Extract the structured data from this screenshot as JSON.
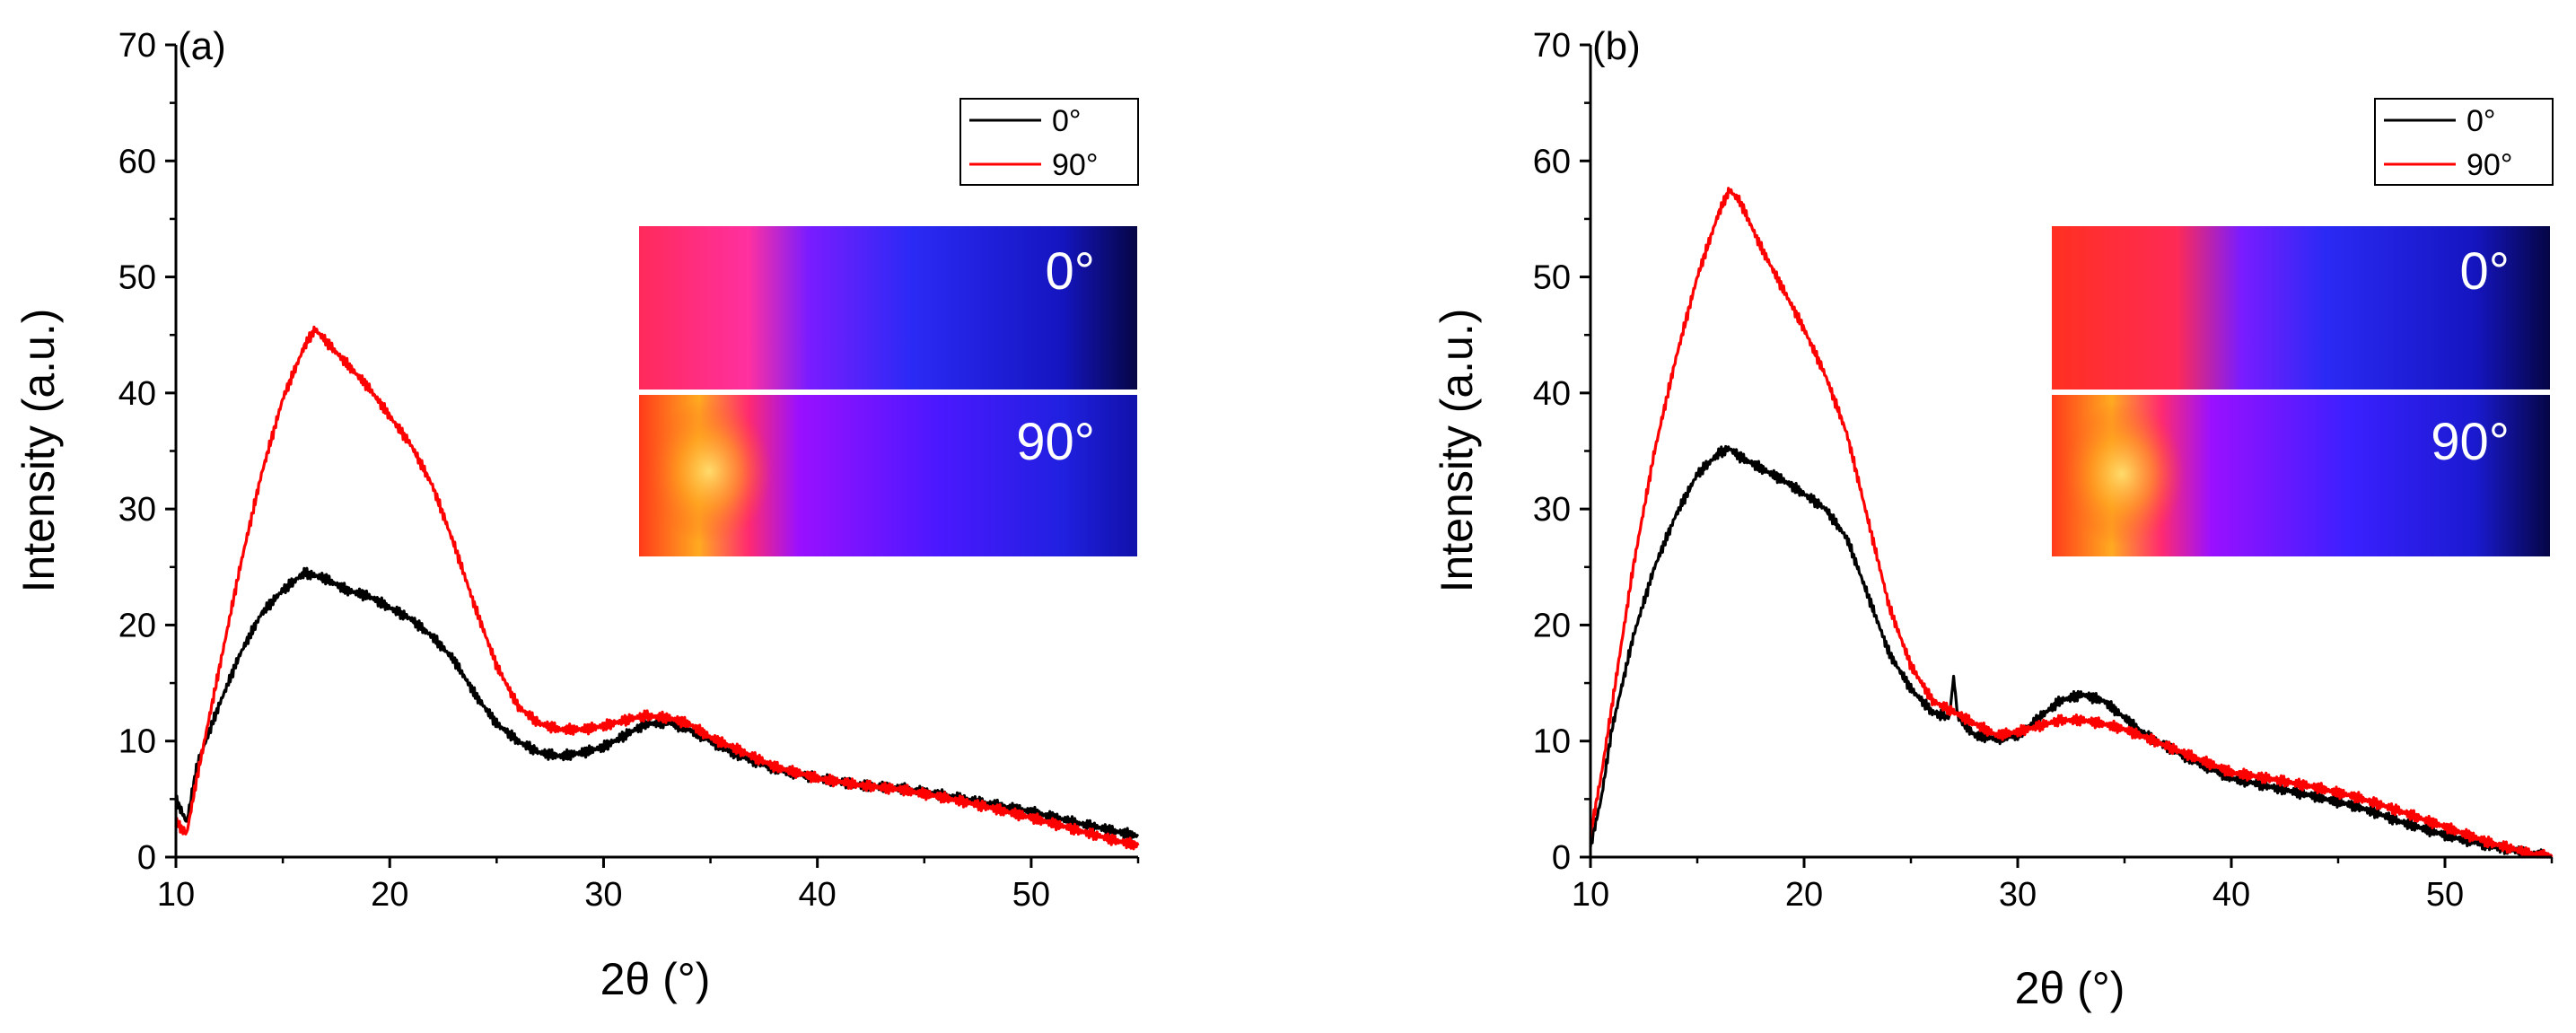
{
  "chart_data": [
    {
      "type": "line",
      "panel_label": "(a)",
      "xlabel": "2θ (°)",
      "ylabel": "Intensity (a.u.)",
      "xlim": [
        10,
        55
      ],
      "ylim": [
        0,
        70
      ],
      "xticks": [
        10,
        20,
        30,
        40,
        50
      ],
      "yticks": [
        0,
        10,
        20,
        30,
        40,
        50,
        60,
        70
      ],
      "legend": {
        "placement": "top-right",
        "entries": [
          "0°",
          "90°"
        ]
      },
      "colors": {
        "0°": "#000000",
        "90°": "#ff0000"
      },
      "series": [
        {
          "name": "0°",
          "x": [
            10,
            10.5,
            11,
            12,
            13,
            14,
            15,
            16,
            17,
            18,
            19,
            20,
            21,
            22,
            23,
            24,
            25,
            26,
            27,
            28,
            29,
            30,
            31,
            32,
            33,
            34,
            35,
            36,
            38,
            40,
            42,
            44,
            46,
            48,
            50,
            52,
            54,
            55
          ],
          "y": [
            5,
            3,
            8,
            13,
            17.5,
            21,
            23,
            24.5,
            24,
            23,
            22.5,
            21.5,
            20.5,
            19,
            17,
            14,
            11.5,
            10,
            9,
            8.7,
            9,
            9.5,
            10.5,
            11.5,
            11.6,
            11,
            10,
            9,
            7.6,
            6.8,
            6.2,
            5.9,
            5.3,
            4.6,
            3.9,
            3.0,
            2.2,
            1.8
          ]
        },
        {
          "name": "90°",
          "x": [
            10,
            10.5,
            11,
            12,
            13,
            14,
            15,
            16,
            16.5,
            17,
            18,
            19,
            20,
            21,
            22,
            23,
            24,
            25,
            26,
            27,
            28,
            29,
            30,
            31,
            32,
            33,
            34,
            35,
            36,
            38,
            40,
            42,
            44,
            46,
            48,
            50,
            52,
            54,
            55
          ],
          "y": [
            3,
            2,
            7,
            16,
            25,
            33,
            39.5,
            44,
            45.5,
            44.5,
            42.5,
            40.5,
            38,
            35.5,
            32,
            27,
            21.5,
            16.5,
            13,
            11.5,
            11,
            11,
            11.3,
            11.8,
            12.2,
            12,
            11.5,
            10.3,
            9.5,
            7.8,
            6.8,
            6.2,
            5.8,
            5.1,
            4.3,
            3.4,
            2.4,
            1.4,
            1.0
          ]
        }
      ],
      "inset": {
        "labels": [
          "0°",
          "90°"
        ]
      }
    },
    {
      "type": "line",
      "panel_label": "(b)",
      "xlabel": "2θ (°)",
      "ylabel": "Intensity (a.u.)",
      "xlim": [
        10,
        55
      ],
      "ylim": [
        0,
        70
      ],
      "xticks": [
        10,
        20,
        30,
        40,
        50
      ],
      "yticks": [
        0,
        10,
        20,
        30,
        40,
        50,
        60,
        70
      ],
      "legend": {
        "placement": "top-right",
        "entries": [
          "0°",
          "90°"
        ]
      },
      "colors": {
        "0°": "#000000",
        "90°": "#ff0000"
      },
      "series": [
        {
          "name": "0°",
          "x": [
            10,
            10.5,
            11,
            12,
            13,
            14,
            15,
            16,
            16.5,
            17,
            18,
            19,
            20,
            21,
            22,
            23,
            24,
            25,
            26,
            26.8,
            27,
            27.2,
            28,
            29,
            30,
            31,
            32,
            33,
            34,
            35,
            36,
            38,
            40,
            42,
            44,
            46,
            48,
            50,
            52,
            54,
            55
          ],
          "y": [
            1,
            5,
            11,
            19,
            25,
            29.5,
            33,
            34.8,
            35.2,
            34.5,
            33.5,
            32.5,
            31.3,
            30,
            27.5,
            22.5,
            17.5,
            14.5,
            12.5,
            12,
            15.5,
            12,
            10.5,
            10.2,
            10.5,
            12,
            13.5,
            14,
            13.5,
            12,
            10.5,
            8.5,
            6.8,
            6.0,
            5.2,
            4.3,
            3.0,
            1.9,
            1.0,
            0.3,
            0
          ]
        },
        {
          "name": "90°",
          "x": [
            10,
            10.5,
            11,
            12,
            13,
            14,
            15,
            16,
            16.5,
            17,
            18,
            19,
            20,
            21,
            22,
            23,
            24,
            25,
            26,
            27,
            28,
            29,
            30,
            31,
            32,
            33,
            34,
            35,
            36,
            38,
            40,
            42,
            44,
            46,
            48,
            50,
            52,
            54,
            55
          ],
          "y": [
            2,
            7,
            13,
            25,
            35,
            43,
            50,
            55.5,
            57.5,
            56.5,
            52.5,
            49,
            45.5,
            41.5,
            36.5,
            29,
            21.5,
            16.5,
            13.5,
            12.5,
            11.5,
            10.5,
            10.8,
            11.3,
            11.8,
            11.8,
            11.5,
            11,
            10.3,
            8.8,
            7.3,
            6.7,
            6.0,
            5.1,
            3.9,
            2.6,
            1.3,
            0.3,
            0
          ]
        }
      ],
      "inset": {
        "labels": [
          "0°",
          "90°"
        ]
      }
    }
  ]
}
